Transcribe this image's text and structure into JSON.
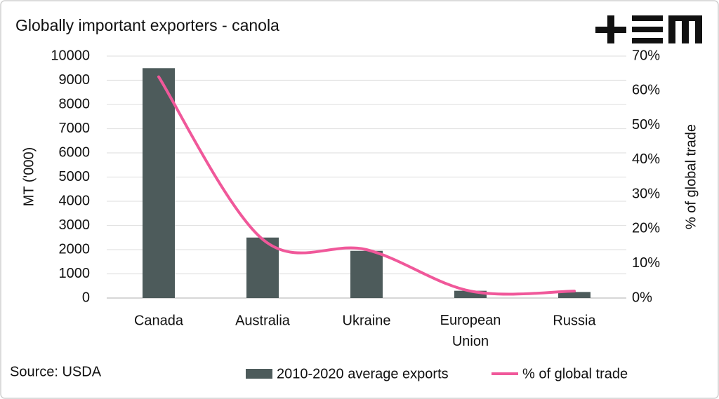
{
  "chart_data": {
    "type": "bar",
    "title": "Globally important exporters - canola",
    "source": "Source: USDA",
    "y_label": "MT ('000)",
    "y2_label": "% of global trade",
    "categories": [
      "Canada",
      "Australia",
      "Ukraine",
      "European Union",
      "Russia"
    ],
    "series": [
      {
        "name": "2010-2020 average exports",
        "type": "bar",
        "color": "#4d5b5b",
        "values": [
          9500,
          2500,
          1950,
          300,
          250
        ]
      },
      {
        "name": "% of global trade",
        "type": "line",
        "axis": "y2",
        "color": "#f0589a",
        "values": [
          64,
          17,
          14,
          2,
          2
        ]
      }
    ],
    "ylim": [
      0,
      10000
    ],
    "yticks": [
      0,
      1000,
      2000,
      3000,
      4000,
      5000,
      6000,
      7000,
      8000,
      9000,
      10000
    ],
    "y2lim": [
      0,
      70
    ],
    "y2ticks": [
      {
        "value": 0,
        "label": "0%"
      },
      {
        "value": 10,
        "label": "10%"
      },
      {
        "value": 20,
        "label": "20%"
      },
      {
        "value": 30,
        "label": "30%"
      },
      {
        "value": 40,
        "label": "40%"
      },
      {
        "value": 50,
        "label": "50%"
      },
      {
        "value": 60,
        "label": "60%"
      },
      {
        "value": 70,
        "label": "70%"
      }
    ],
    "grid": true
  }
}
